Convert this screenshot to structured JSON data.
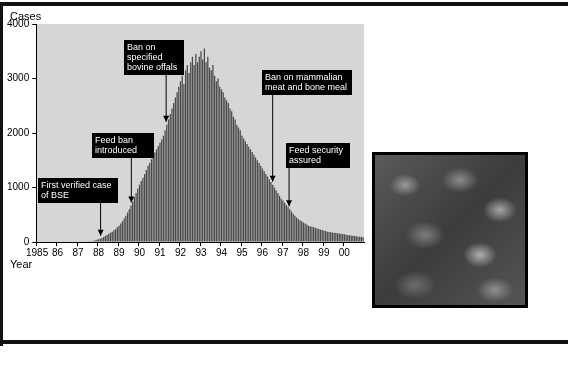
{
  "chart_data": {
    "type": "bar",
    "y_label": "Cases",
    "x_label": "Year",
    "categories": [
      "1985",
      null,
      null,
      null,
      null,
      null,
      null,
      null,
      null,
      null,
      null,
      null,
      "86",
      null,
      null,
      null,
      null,
      null,
      null,
      null,
      null,
      null,
      null,
      null,
      "87",
      null,
      null,
      null,
      null,
      null,
      null,
      null,
      null,
      null,
      null,
      null,
      "88",
      null,
      null,
      null,
      null,
      null,
      null,
      null,
      null,
      null,
      null,
      null,
      "89",
      null,
      null,
      null,
      null,
      null,
      null,
      null,
      null,
      null,
      null,
      null,
      "90",
      null,
      null,
      null,
      null,
      null,
      null,
      null,
      null,
      null,
      null,
      null,
      "91",
      null,
      null,
      null,
      null,
      null,
      null,
      null,
      null,
      null,
      null,
      null,
      "92",
      null,
      null,
      null,
      null,
      null,
      null,
      null,
      null,
      null,
      null,
      null,
      "93",
      null,
      null,
      null,
      null,
      null,
      null,
      null,
      null,
      null,
      null,
      null,
      "94",
      null,
      null,
      null,
      null,
      null,
      null,
      null,
      null,
      null,
      null,
      null,
      "95",
      null,
      null,
      null,
      null,
      null,
      null,
      null,
      null,
      null,
      null,
      null,
      "96",
      null,
      null,
      null,
      null,
      null,
      null,
      null,
      null,
      null,
      null,
      null,
      "97",
      null,
      null,
      null,
      null,
      null,
      null,
      null,
      null,
      null,
      null,
      null,
      "98",
      null,
      null,
      null,
      null,
      null,
      null,
      null,
      null,
      null,
      null,
      null,
      "99",
      null,
      null,
      null,
      null,
      null,
      null,
      null,
      null,
      null,
      null,
      null,
      "00",
      null,
      null,
      null,
      null,
      null,
      null,
      null,
      null,
      null,
      null,
      null
    ],
    "values": [
      0,
      0,
      0,
      0,
      0,
      0,
      0,
      0,
      0,
      0,
      0,
      0,
      0,
      0,
      0,
      0,
      0,
      0,
      0,
      0,
      0,
      0,
      0,
      0,
      0,
      0,
      0,
      0,
      0,
      0,
      5,
      10,
      15,
      20,
      30,
      40,
      50,
      60,
      75,
      90,
      110,
      130,
      150,
      170,
      190,
      215,
      240,
      270,
      300,
      340,
      380,
      430,
      480,
      540,
      600,
      670,
      740,
      820,
      900,
      980,
      1050,
      1120,
      1180,
      1250,
      1320,
      1400,
      1450,
      1520,
      1580,
      1640,
      1700,
      1760,
      1820,
      1880,
      1950,
      2050,
      2150,
      2250,
      2350,
      2450,
      2550,
      2650,
      2750,
      2850,
      2950,
      3050,
      2900,
      3150,
      3250,
      3100,
      3300,
      3400,
      3250,
      3450,
      3300,
      3400,
      3500,
      3350,
      3550,
      3300,
      3400,
      3200,
      3150,
      3250,
      3050,
      2950,
      3000,
      2850,
      2800,
      2750,
      2650,
      2600,
      2550,
      2450,
      2400,
      2300,
      2250,
      2150,
      2100,
      2050,
      1950,
      1900,
      1850,
      1800,
      1750,
      1700,
      1650,
      1600,
      1550,
      1500,
      1450,
      1400,
      1350,
      1300,
      1250,
      1200,
      1150,
      1100,
      1050,
      1000,
      950,
      900,
      850,
      800,
      760,
      720,
      680,
      640,
      600,
      560,
      520,
      480,
      450,
      420,
      400,
      380,
      360,
      340,
      320,
      300,
      290,
      280,
      270,
      260,
      250,
      240,
      230,
      220,
      210,
      200,
      190,
      185,
      180,
      175,
      170,
      165,
      160,
      155,
      150,
      145,
      140,
      135,
      130,
      125,
      120,
      115,
      110,
      105,
      100,
      95,
      90,
      85
    ],
    "color": "#4a4a4a",
    "ylim": [
      0,
      4000
    ],
    "yticks": [
      0,
      1000,
      2000,
      3000,
      4000
    ],
    "grid": false,
    "annotations": [
      {
        "text": "First verified case of BSE",
        "x": 1988.1
      },
      {
        "text": "Feed ban introduced",
        "x": 1989.6
      },
      {
        "text": "Ban on specified bovine offals",
        "x": 1991.3
      },
      {
        "text": "Ban on mammalian meat and bone meal",
        "x": 1996.5
      },
      {
        "text": "Feed security assured",
        "x": 1997.3
      }
    ]
  }
}
